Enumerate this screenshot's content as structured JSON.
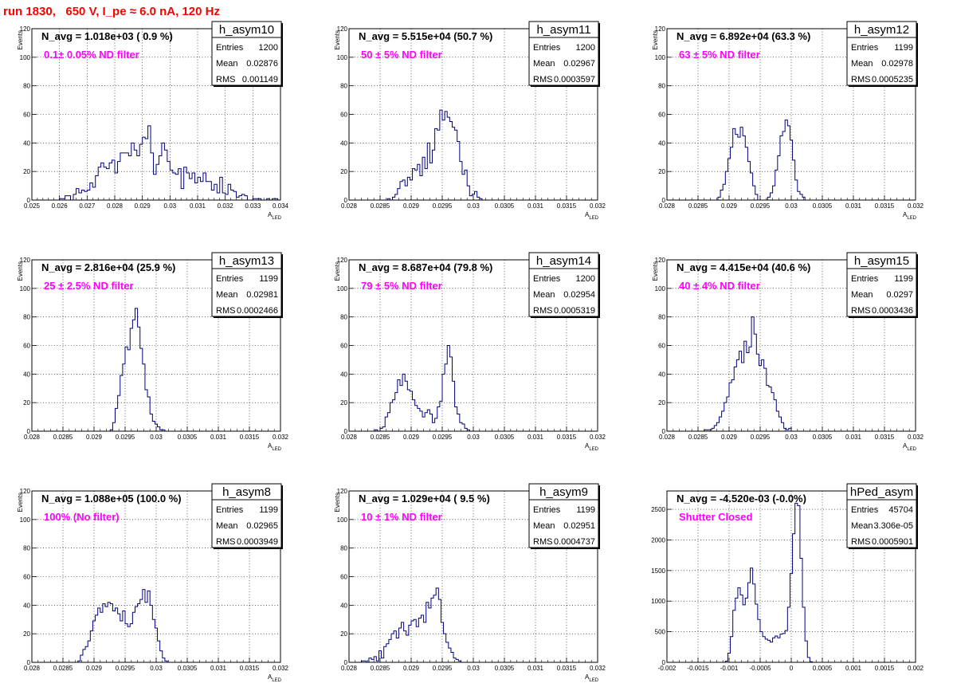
{
  "page_title": "run 1830,   650 V, I_pe ≈ 6.0 nA, 120 Hz",
  "stats_labels": [
    "Entries",
    "Mean",
    "RMS"
  ],
  "colors": {
    "title": "#ff0000",
    "annotation": "#ff00ff",
    "histogram": "#000080",
    "grid": "#000000"
  },
  "chart_data": [
    {
      "type": "histogram",
      "name": "h_asym10",
      "navg": "N_avg = 1.018e+03 ( 0.9 %)",
      "annotation": "0.1± 0.05% ND filter",
      "stats": {
        "Entries": "1200",
        "Mean": "0.02876",
        "RMS": "0.001149"
      },
      "ylabel": "Events",
      "xlabel": "A_LED",
      "xlim": [
        0.025,
        0.034
      ],
      "ylim": [
        0,
        120
      ],
      "xticks": [
        0.025,
        0.026,
        0.027,
        0.028,
        0.029,
        0.03,
        0.031,
        0.032,
        0.033,
        0.034
      ],
      "xticklabels": [
        "0.025",
        "0.026",
        "0.027",
        "0.028",
        "0.029",
        "0.03",
        "0.031",
        "0.032",
        "0.033",
        "0.034"
      ],
      "yticks": [
        0,
        20,
        40,
        60,
        80,
        100,
        120
      ],
      "bins": {
        "start": 0.026,
        "width": 0.0001,
        "values": [
          1,
          1,
          3,
          3,
          0,
          4,
          8,
          5,
          7,
          6,
          7,
          12,
          9,
          17,
          23,
          26,
          23,
          22,
          26,
          28,
          19,
          27,
          33,
          33,
          33,
          31,
          40,
          35,
          31,
          39,
          44,
          43,
          52,
          33,
          18,
          25,
          31,
          40,
          35,
          27,
          21,
          19,
          18,
          22,
          8,
          23,
          19,
          15,
          19,
          12,
          16,
          13,
          19,
          13,
          13,
          7,
          11,
          5,
          16,
          5,
          4,
          11,
          7,
          6,
          2,
          3,
          4,
          3,
          0,
          0,
          1,
          1,
          1,
          0,
          0,
          1,
          0,
          1,
          1,
          0
        ]
      }
    },
    {
      "type": "histogram",
      "name": "h_asym11",
      "navg": "N_avg = 5.515e+04 (50.7 %)",
      "annotation": "50 ± 5% ND filter",
      "stats": {
        "Entries": "1200",
        "Mean": "0.02967",
        "RMS": "0.0003597"
      },
      "ylabel": "Events",
      "xlabel": "A_LED",
      "xlim": [
        0.028,
        0.032
      ],
      "ylim": [
        0,
        120
      ],
      "xticks": [
        0.028,
        0.0285,
        0.029,
        0.0295,
        0.03,
        0.0305,
        0.031,
        0.0315,
        0.032
      ],
      "xticklabels": [
        "0.028",
        "0.0285",
        "0.029",
        "0.0295",
        "0.03",
        "0.0305",
        "0.031",
        "0.0315",
        "0.032"
      ],
      "yticks": [
        0,
        20,
        40,
        60,
        80,
        100,
        120
      ],
      "bins": {
        "start": 0.02862,
        "width": 4e-05,
        "values": [
          1,
          0,
          2,
          4,
          8,
          13,
          14,
          10,
          16,
          14,
          22,
          21,
          25,
          17,
          30,
          22,
          40,
          26,
          35,
          50,
          49,
          63,
          56,
          62,
          58,
          55,
          51,
          49,
          41,
          27,
          18,
          21,
          10,
          3,
          4,
          6,
          2,
          1
        ]
      }
    },
    {
      "type": "histogram",
      "name": "h_asym12",
      "navg": "N_avg = 6.892e+04 (63.3 %)",
      "annotation": "63 ± 5% ND filter",
      "stats": {
        "Entries": "1199",
        "Mean": "0.02978",
        "RMS": "0.0005235"
      },
      "ylabel": "Events",
      "xlabel": "A_LED",
      "xlim": [
        0.028,
        0.032
      ],
      "ylim": [
        0,
        120
      ],
      "xticks": [
        0.028,
        0.0285,
        0.029,
        0.0295,
        0.03,
        0.0305,
        0.031,
        0.0315,
        0.032
      ],
      "xticklabels": [
        "0.028",
        "0.0285",
        "0.029",
        "0.0295",
        "0.03",
        "0.0305",
        "0.031",
        "0.0315",
        "0.032"
      ],
      "yticks": [
        0,
        20,
        40,
        60,
        80,
        100,
        120
      ],
      "bins": {
        "start": 0.02882,
        "width": 4e-05,
        "values": [
          2,
          7,
          11,
          20,
          29,
          37,
          50,
          46,
          44,
          51,
          45,
          37,
          27,
          19,
          10,
          4,
          0,
          0,
          0,
          0,
          2,
          5,
          10,
          21,
          31,
          45,
          48,
          56,
          52,
          42,
          28,
          14,
          6,
          4,
          2
        ]
      }
    },
    {
      "type": "histogram",
      "name": "h_asym13",
      "navg": "N_avg = 2.816e+04 (25.9 %)",
      "annotation": "25 ± 2.5% ND filter",
      "stats": {
        "Entries": "1199",
        "Mean": "0.02981",
        "RMS": "0.0002466"
      },
      "ylabel": "Events",
      "xlabel": "A_LED",
      "xlim": [
        0.028,
        0.032
      ],
      "ylim": [
        0,
        120
      ],
      "xticks": [
        0.028,
        0.0285,
        0.029,
        0.0295,
        0.03,
        0.0305,
        0.031,
        0.0315,
        0.032
      ],
      "xticklabels": [
        "0.028",
        "0.0285",
        "0.029",
        "0.0295",
        "0.03",
        "0.0305",
        "0.031",
        "0.0315",
        "0.032"
      ],
      "yticks": [
        0,
        20,
        40,
        60,
        80,
        100,
        120
      ],
      "bins": {
        "start": 0.02926,
        "width": 4e-05,
        "values": [
          1,
          6,
          16,
          25,
          39,
          47,
          59,
          57,
          72,
          78,
          86,
          73,
          58,
          47,
          29,
          24,
          12,
          7,
          5,
          3,
          1,
          1
        ]
      }
    },
    {
      "type": "histogram",
      "name": "h_asym14",
      "navg": "N_avg = 8.687e+04 (79.8 %)",
      "annotation": "79 ± 5% ND filter",
      "stats": {
        "Entries": "1200",
        "Mean": "0.02954",
        "RMS": "0.0005319"
      },
      "ylabel": "Events",
      "xlabel": "A_LED",
      "xlim": [
        0.028,
        0.032
      ],
      "ylim": [
        0,
        120
      ],
      "xticks": [
        0.028,
        0.0285,
        0.029,
        0.0295,
        0.03,
        0.0305,
        0.031,
        0.0315,
        0.032
      ],
      "xticklabels": [
        "0.028",
        "0.0285",
        "0.029",
        "0.0295",
        "0.03",
        "0.0305",
        "0.031",
        "0.0315",
        "0.032"
      ],
      "yticks": [
        0,
        20,
        40,
        60,
        80,
        100,
        120
      ],
      "bins": {
        "start": 0.02842,
        "width": 4e-05,
        "values": [
          1,
          0,
          2,
          3,
          10,
          13,
          20,
          22,
          27,
          36,
          32,
          40,
          35,
          29,
          28,
          22,
          18,
          16,
          14,
          10,
          13,
          15,
          12,
          6,
          9,
          17,
          21,
          40,
          47,
          60,
          52,
          35,
          17,
          12,
          6,
          5,
          2,
          1
        ]
      }
    },
    {
      "type": "histogram",
      "name": "h_asym15",
      "navg": "N_avg = 4.415e+04 (40.6 %)",
      "annotation": "40 ± 4% ND filter",
      "stats": {
        "Entries": "1199",
        "Mean": "0.0297",
        "RMS": "0.0003436"
      },
      "ylabel": "Events",
      "xlabel": "A_LED",
      "xlim": [
        0.028,
        0.032
      ],
      "ylim": [
        0,
        120
      ],
      "xticks": [
        0.028,
        0.0285,
        0.029,
        0.0295,
        0.03,
        0.0305,
        0.031,
        0.0315,
        0.032
      ],
      "xticklabels": [
        "0.028",
        "0.0285",
        "0.029",
        "0.0295",
        "0.03",
        "0.0305",
        "0.031",
        "0.0315",
        "0.032"
      ],
      "yticks": [
        0,
        20,
        40,
        60,
        80,
        100,
        120
      ],
      "bins": {
        "start": 0.0286,
        "width": 4e-05,
        "values": [
          1,
          1,
          1,
          2,
          4,
          6,
          10,
          14,
          20,
          24,
          34,
          36,
          45,
          50,
          56,
          48,
          63,
          55,
          59,
          80,
          68,
          54,
          46,
          50,
          44,
          32,
          31,
          27,
          22,
          14,
          10,
          6,
          2,
          1,
          2
        ]
      }
    },
    {
      "type": "histogram",
      "name": "h_asym8",
      "navg": "N_avg = 1.088e+05 (100.0 %)",
      "annotation": "100% (No filter)",
      "stats": {
        "Entries": "1199",
        "Mean": "0.02965",
        "RMS": "0.0003949"
      },
      "ylabel": "Events",
      "xlabel": "A_LED",
      "xlim": [
        0.028,
        0.032
      ],
      "ylim": [
        0,
        120
      ],
      "xticks": [
        0.028,
        0.0285,
        0.029,
        0.0295,
        0.03,
        0.0305,
        0.031,
        0.0315,
        0.032
      ],
      "xticklabels": [
        "0.028",
        "0.0285",
        "0.029",
        "0.0295",
        "0.03",
        "0.0305",
        "0.031",
        "0.0315",
        "0.032"
      ],
      "yticks": [
        0,
        20,
        40,
        60,
        80,
        100,
        120
      ],
      "bins": {
        "start": 0.02874,
        "width": 4e-05,
        "values": [
          1,
          5,
          9,
          11,
          15,
          22,
          29,
          33,
          38,
          35,
          41,
          39,
          42,
          41,
          36,
          38,
          34,
          29,
          36,
          27,
          25,
          27,
          35,
          39,
          41,
          44,
          51,
          42,
          50,
          40,
          30,
          24,
          15,
          8,
          3,
          1
        ]
      }
    },
    {
      "type": "histogram",
      "name": "h_asym9",
      "navg": "N_avg = 1.029e+04 ( 9.5 %)",
      "annotation": "10 ± 1% ND filter",
      "stats": {
        "Entries": "1199",
        "Mean": "0.02951",
        "RMS": "0.0004737"
      },
      "ylabel": "Events",
      "xlabel": "A_LED",
      "xlim": [
        0.028,
        0.032
      ],
      "ylim": [
        0,
        120
      ],
      "xticks": [
        0.028,
        0.0285,
        0.029,
        0.0295,
        0.03,
        0.0305,
        0.031,
        0.0315,
        0.032
      ],
      "xticklabels": [
        "0.028",
        "0.0285",
        "0.029",
        "0.0295",
        "0.03",
        "0.0305",
        "0.031",
        "0.0315",
        "0.032"
      ],
      "yticks": [
        0,
        20,
        40,
        60,
        80,
        100,
        120
      ],
      "bins": {
        "start": 0.0282,
        "width": 4e-05,
        "values": [
          1,
          1,
          0,
          3,
          2,
          4,
          1,
          8,
          3,
          11,
          13,
          16,
          20,
          22,
          17,
          24,
          28,
          22,
          19,
          26,
          29,
          30,
          25,
          31,
          33,
          28,
          42,
          38,
          45,
          47,
          52,
          44,
          28,
          20,
          14,
          10,
          7,
          3,
          2,
          1
        ]
      }
    },
    {
      "type": "histogram",
      "name": "hPed_asym",
      "navg": "N_avg = -4.520e-03 (-0.0%)",
      "annotation": "Shutter Closed",
      "stats": {
        "Entries": "45704",
        "Mean": "3.306e-05",
        "RMS": "0.0005901"
      },
      "ylabel": "",
      "xlabel": "",
      "xlim": [
        -0.002,
        0.002
      ],
      "ylim": [
        0,
        2800
      ],
      "xticks": [
        -0.002,
        -0.0015,
        -0.001,
        -0.0005,
        0,
        0.0005,
        0.001,
        0.0015,
        0.002
      ],
      "xticklabels": [
        "-0.002",
        "-0.0015",
        "-0.001",
        "-0.0005",
        "0",
        "0.0005",
        "0.001",
        "0.0015",
        "0.002"
      ],
      "yticks": [
        0,
        500,
        1000,
        1500,
        2000,
        2500
      ],
      "bins": {
        "start": -0.00106,
        "width": 4e-05,
        "values": [
          20,
          150,
          420,
          850,
          1050,
          1220,
          1100,
          940,
          1050,
          1300,
          1540,
          1280,
          950,
          700,
          500,
          420,
          380,
          360,
          330,
          400,
          430,
          400,
          460,
          470,
          520,
          900,
          1450,
          2100,
          2600,
          2560,
          1700,
          900,
          350,
          80,
          10
        ]
      }
    }
  ]
}
